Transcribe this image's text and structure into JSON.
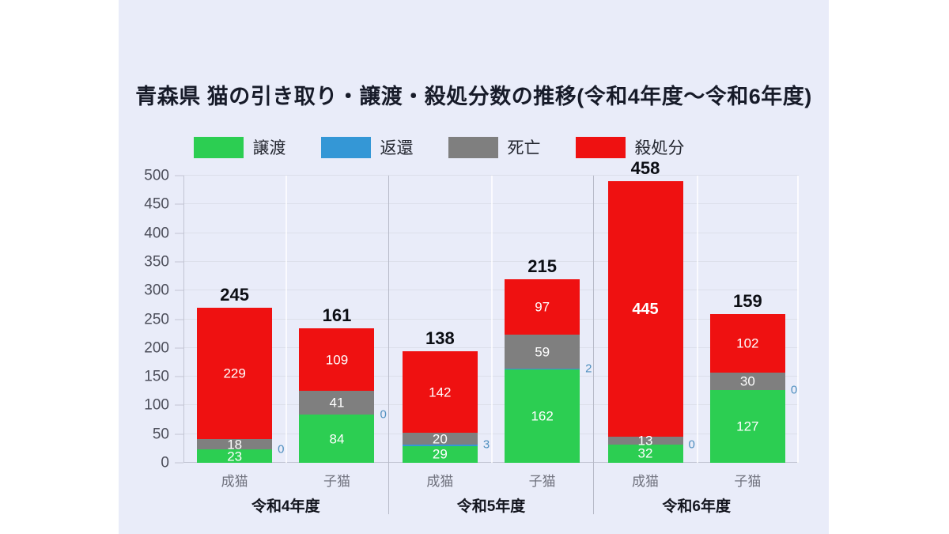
{
  "page": {
    "background": "#ffffff",
    "panel_background": "#E9ECF9"
  },
  "title": "青森県 猫の引き取り・譲渡・殺処分数の推移(令和4年度～令和6年度)",
  "legend": {
    "items": [
      {
        "label": "譲渡",
        "color": "#2CCE52"
      },
      {
        "label": "返還",
        "color": "#3497D6"
      },
      {
        "label": "死亡",
        "color": "#7F7F7F"
      },
      {
        "label": "殺処分",
        "color": "#EF1111"
      }
    ]
  },
  "chart_data": {
    "type": "bar",
    "stacked": true,
    "title": "青森県 猫の引き取り・譲渡・殺処分数の推移(令和4年度～令和6年度)",
    "xlabel": "",
    "ylabel": "",
    "ylim": [
      0,
      500
    ],
    "yticks": [
      0,
      50,
      100,
      150,
      200,
      250,
      300,
      350,
      400,
      450,
      500
    ],
    "grid": true,
    "legend_position": "top",
    "series_order": [
      "譲渡",
      "返還",
      "死亡",
      "殺処分"
    ],
    "series_colors": {
      "譲渡": "#2CCE52",
      "返還": "#3497D6",
      "死亡": "#7F7F7F",
      "殺処分": "#EF1111"
    },
    "groups": [
      {
        "label": "令和4年度",
        "bars": [
          {
            "category": "成猫",
            "total_label": "245",
            "segments": [
              {
                "name": "譲渡",
                "value": 23
              },
              {
                "name": "返還",
                "value": 0
              },
              {
                "name": "死亡",
                "value": 18
              },
              {
                "name": "殺処分",
                "value": 229
              }
            ]
          },
          {
            "category": "子猫",
            "total_label": "161",
            "segments": [
              {
                "name": "譲渡",
                "value": 84
              },
              {
                "name": "返還",
                "value": 0
              },
              {
                "name": "死亡",
                "value": 41
              },
              {
                "name": "殺処分",
                "value": 109
              }
            ]
          }
        ]
      },
      {
        "label": "令和5年度",
        "bars": [
          {
            "category": "成猫",
            "total_label": "138",
            "segments": [
              {
                "name": "譲渡",
                "value": 29
              },
              {
                "name": "返還",
                "value": 3
              },
              {
                "name": "死亡",
                "value": 20
              },
              {
                "name": "殺処分",
                "value": 142
              }
            ]
          },
          {
            "category": "子猫",
            "total_label": "215",
            "segments": [
              {
                "name": "譲渡",
                "value": 162
              },
              {
                "name": "返還",
                "value": 2
              },
              {
                "name": "死亡",
                "value": 59
              },
              {
                "name": "殺処分",
                "value": 97
              }
            ]
          }
        ]
      },
      {
        "label": "令和6年度",
        "bars": [
          {
            "category": "成猫",
            "total_label": "458",
            "segments": [
              {
                "name": "譲渡",
                "value": 32
              },
              {
                "name": "返還",
                "value": 0
              },
              {
                "name": "死亡",
                "value": 13
              },
              {
                "name": "殺処分",
                "value": 445,
                "bold": true
              }
            ]
          },
          {
            "category": "子猫",
            "total_label": "159",
            "segments": [
              {
                "name": "譲渡",
                "value": 127
              },
              {
                "name": "返還",
                "value": 0
              },
              {
                "name": "死亡",
                "value": 30
              },
              {
                "name": "殺処分",
                "value": 102
              }
            ]
          }
        ]
      }
    ]
  }
}
